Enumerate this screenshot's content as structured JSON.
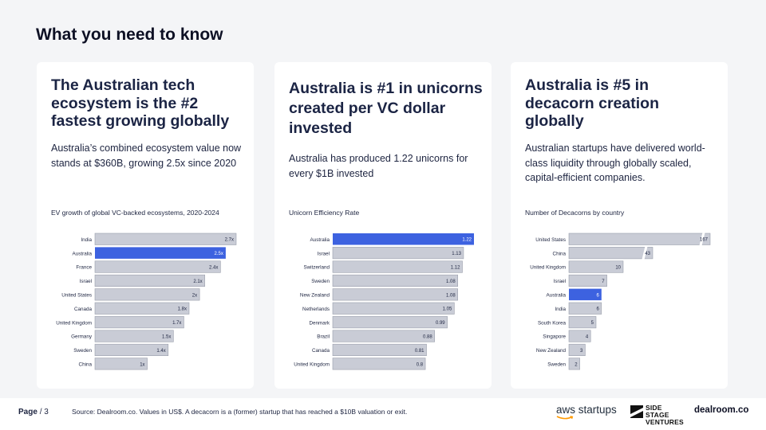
{
  "page": {
    "title": "What you need to know"
  },
  "cards": [
    {
      "heading": "The Australian tech ecosystem is the #2 fastest growing globally",
      "body": "Australia’s combined ecosystem value now stands at $360B, growing 2.5x since 2020",
      "chart_title": "EV growth of global VC-backed ecosystems, 2020-2024"
    },
    {
      "heading": "Australia is #1 in unicorns created per VC dollar invested",
      "body": "Australia has produced 1.22 unicorns for every $1B invested",
      "chart_title": "Unicorn Efficiency Rate"
    },
    {
      "heading": "Australia is #5 in decacorn creation globally",
      "body": "Australian startups have delivered world-class liquidity through globally scaled, capital-efficient companies.",
      "chart_title": "Number of Decacorns by country"
    }
  ],
  "chart_data": [
    {
      "type": "bar",
      "orientation": "horizontal",
      "title": "EV growth of global VC-backed ecosystems, 2020-2024",
      "categories": [
        "India",
        "Australia",
        "France",
        "Israel",
        "United States",
        "Canada",
        "United Kingdom",
        "Germany",
        "Sweden",
        "China"
      ],
      "values": [
        2.7,
        2.5,
        2.4,
        2.1,
        2,
        1.8,
        1.7,
        1.5,
        1.4,
        1
      ],
      "data_labels": [
        "2.7x",
        "2.5x",
        "2.4x",
        "2.1x",
        "2x",
        "1.8x",
        "1.7x",
        "1.5x",
        "1.4x",
        "1x"
      ],
      "highlight": "Australia",
      "xlim": [
        0,
        2.7
      ],
      "bar_color": "#c9ccd6",
      "highlight_color": "#3d62e0",
      "grid": false
    },
    {
      "type": "bar",
      "orientation": "horizontal",
      "title": "Unicorn Efficiency Rate",
      "categories": [
        "Australia",
        "Israel",
        "Switzerland",
        "Sweden",
        "New Zealand",
        "Netherlands",
        "Denmark",
        "Brazil",
        "Canada",
        "United Kingdom"
      ],
      "values": [
        1.22,
        1.13,
        1.12,
        1.08,
        1.08,
        1.05,
        0.99,
        0.88,
        0.81,
        0.8
      ],
      "data_labels": [
        "1.22",
        "1.13",
        "1.12",
        "1.08",
        "1.08",
        "1.05",
        "0.99",
        "0.88",
        "0.81",
        "0.8"
      ],
      "highlight": "Australia",
      "xlim": [
        0,
        1.22
      ],
      "bar_color": "#c9ccd6",
      "highlight_color": "#3d62e0",
      "grid": false
    },
    {
      "type": "bar",
      "orientation": "horizontal",
      "title": "Number of Decacorns by country",
      "categories": [
        "United States",
        "China",
        "United Kingdom",
        "Israel",
        "Australia",
        "India",
        "South Korea",
        "Singapore",
        "New Zealand",
        "Sweden"
      ],
      "values": [
        167,
        43,
        10,
        7,
        6,
        6,
        5,
        4,
        3,
        2
      ],
      "data_labels": [
        "167",
        "43",
        "10",
        "7",
        "6",
        "6",
        "5",
        "4",
        "3",
        "2"
      ],
      "highlight": "Australia",
      "axis_break": true,
      "bar_color": "#c9ccd6",
      "highlight_color": "#3d62e0",
      "grid": false
    }
  ],
  "footer": {
    "page_label": "Page",
    "page_suffix": "/ 3",
    "source": "Source: Dealroom.co.  Values in US$.  A decacorn is a (former) startup that has reached a $10B valuation or exit.",
    "logo_aws": "aws startups",
    "logo_ss_line1": "SIDE STAGE",
    "logo_ss_line2": "VENTURES",
    "logo_dealroom": "dealroom.co"
  }
}
